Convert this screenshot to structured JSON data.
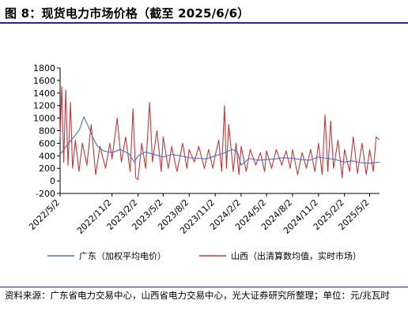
{
  "figure": {
    "title": "图 8：现货电力市场价格（截至 2025/6/6）",
    "source": "资料来源：广东省电力交易中心，山西省电力交易中心，光大证券研究所整理；单位：元/兆瓦时"
  },
  "chart_data": {
    "type": "line",
    "ylim": [
      -200,
      1800
    ],
    "yticks": [
      -200,
      0,
      200,
      400,
      600,
      800,
      1000,
      1200,
      1400,
      1600,
      1800
    ],
    "xticks": [
      "2022/5/2",
      "2022/11/2",
      "2023/2/2",
      "2023/5/2",
      "2023/8/2",
      "2023/11/2",
      "2024/2/2",
      "2024/5/2",
      "2024/8/2",
      "2024/11/2",
      "2025/2/2",
      "2025/5/2"
    ],
    "xlim": [
      "2022/5/2",
      "2025/6/6"
    ],
    "legend_position": "bottom",
    "grid": false,
    "series": [
      {
        "name": "广东（加权平均电价）",
        "color": "#4a72c4",
        "points": [
          [
            "2022/5/2",
            420
          ],
          [
            "2022/5/25",
            560
          ],
          [
            "2022/6/20",
            700
          ],
          [
            "2022/7/10",
            820
          ],
          [
            "2022/7/25",
            1020
          ],
          [
            "2022/8/10",
            870
          ],
          [
            "2022/8/25",
            700
          ],
          [
            "2022/9/10",
            560
          ],
          [
            "2022/10/1",
            480
          ],
          [
            "2022/11/2",
            450
          ],
          [
            "2022/12/1",
            500
          ],
          [
            "2023/1/1",
            430
          ],
          [
            "2023/1/20",
            300
          ],
          [
            "2023/2/2",
            400
          ],
          [
            "2023/3/1",
            460
          ],
          [
            "2023/4/1",
            420
          ],
          [
            "2023/5/2",
            380
          ],
          [
            "2023/6/1",
            420
          ],
          [
            "2023/7/1",
            400
          ],
          [
            "2023/8/2",
            370
          ],
          [
            "2023/9/1",
            360
          ],
          [
            "2023/10/1",
            350
          ],
          [
            "2023/11/2",
            400
          ],
          [
            "2023/12/1",
            440
          ],
          [
            "2024/1/1",
            500
          ],
          [
            "2024/1/20",
            460
          ],
          [
            "2024/2/2",
            250
          ],
          [
            "2024/3/1",
            360
          ],
          [
            "2024/4/1",
            330
          ],
          [
            "2024/5/2",
            340
          ],
          [
            "2024/6/1",
            350
          ],
          [
            "2024/7/1",
            370
          ],
          [
            "2024/8/2",
            360
          ],
          [
            "2024/9/1",
            340
          ],
          [
            "2024/10/1",
            330
          ],
          [
            "2024/11/2",
            380
          ],
          [
            "2024/12/1",
            360
          ],
          [
            "2025/1/1",
            340
          ],
          [
            "2025/2/2",
            300
          ],
          [
            "2025/3/1",
            320
          ],
          [
            "2025/4/1",
            290
          ],
          [
            "2025/5/2",
            280
          ],
          [
            "2025/6/6",
            300
          ]
        ]
      },
      {
        "name": "山西（出清算数均值，实时市场）",
        "color": "#c0393b",
        "points": [
          [
            "2022/5/2",
            700
          ],
          [
            "2022/5/8",
            1500
          ],
          [
            "2022/5/15",
            300
          ],
          [
            "2022/5/22",
            1450
          ],
          [
            "2022/5/30",
            250
          ],
          [
            "2022/6/8",
            1250
          ],
          [
            "2022/6/15",
            200
          ],
          [
            "2022/6/25",
            650
          ],
          [
            "2022/7/8",
            150
          ],
          [
            "2022/7/20",
            600
          ],
          [
            "2022/8/5",
            250
          ],
          [
            "2022/8/20",
            900
          ],
          [
            "2022/9/5",
            100
          ],
          [
            "2022/9/20",
            550
          ],
          [
            "2022/10/10",
            200
          ],
          [
            "2022/10/25",
            600
          ],
          [
            "2022/11/2",
            350
          ],
          [
            "2022/11/20",
            1000
          ],
          [
            "2022/12/5",
            300
          ],
          [
            "2022/12/20",
            700
          ],
          [
            "2023/1/5",
            150
          ],
          [
            "2023/1/15",
            1150
          ],
          [
            "2023/1/25",
            50
          ],
          [
            "2023/2/2",
            20
          ],
          [
            "2023/2/15",
            600
          ],
          [
            "2023/3/1",
            200
          ],
          [
            "2023/3/15",
            1250
          ],
          [
            "2023/3/25",
            300
          ],
          [
            "2023/4/10",
            800
          ],
          [
            "2023/4/25",
            150
          ],
          [
            "2023/5/2",
            700
          ],
          [
            "2023/5/20",
            200
          ],
          [
            "2023/6/1",
            550
          ],
          [
            "2023/6/20",
            150
          ],
          [
            "2023/7/10",
            600
          ],
          [
            "2023/7/25",
            200
          ],
          [
            "2023/8/2",
            500
          ],
          [
            "2023/8/20",
            300
          ],
          [
            "2023/9/5",
            550
          ],
          [
            "2023/9/25",
            200
          ],
          [
            "2023/10/10",
            500
          ],
          [
            "2023/10/25",
            200
          ],
          [
            "2023/11/2",
            400
          ],
          [
            "2023/11/15",
            650
          ],
          [
            "2023/11/25",
            150
          ],
          [
            "2023/12/5",
            1200
          ],
          [
            "2023/12/12",
            200
          ],
          [
            "2023/12/20",
            900
          ],
          [
            "2024/1/5",
            150
          ],
          [
            "2024/1/15",
            600
          ],
          [
            "2024/1/25",
            100
          ],
          [
            "2024/2/2",
            550
          ],
          [
            "2024/2/20",
            150
          ],
          [
            "2024/3/5",
            500
          ],
          [
            "2024/3/25",
            250
          ],
          [
            "2024/4/10",
            450
          ],
          [
            "2024/4/25",
            150
          ],
          [
            "2024/5/2",
            480
          ],
          [
            "2024/5/20",
            200
          ],
          [
            "2024/6/5",
            500
          ],
          [
            "2024/6/25",
            250
          ],
          [
            "2024/7/10",
            480
          ],
          [
            "2024/7/25",
            200
          ],
          [
            "2024/8/2",
            500
          ],
          [
            "2024/8/20",
            100
          ],
          [
            "2024/9/5",
            450
          ],
          [
            "2024/9/20",
            200
          ],
          [
            "2024/10/5",
            500
          ],
          [
            "2024/10/20",
            150
          ],
          [
            "2024/11/2",
            600
          ],
          [
            "2024/11/15",
            100
          ],
          [
            "2024/11/25",
            1050
          ],
          [
            "2024/12/5",
            150
          ],
          [
            "2024/12/15",
            950
          ],
          [
            "2024/12/25",
            200
          ],
          [
            "2025/1/10",
            650
          ],
          [
            "2025/1/25",
            50
          ],
          [
            "2025/2/2",
            500
          ],
          [
            "2025/2/20",
            150
          ],
          [
            "2025/3/5",
            700
          ],
          [
            "2025/3/20",
            120
          ],
          [
            "2025/4/5",
            600
          ],
          [
            "2025/4/20",
            100
          ],
          [
            "2025/5/2",
            500
          ],
          [
            "2025/5/15",
            150
          ],
          [
            "2025/5/25",
            700
          ],
          [
            "2025/6/6",
            650
          ]
        ]
      }
    ]
  }
}
